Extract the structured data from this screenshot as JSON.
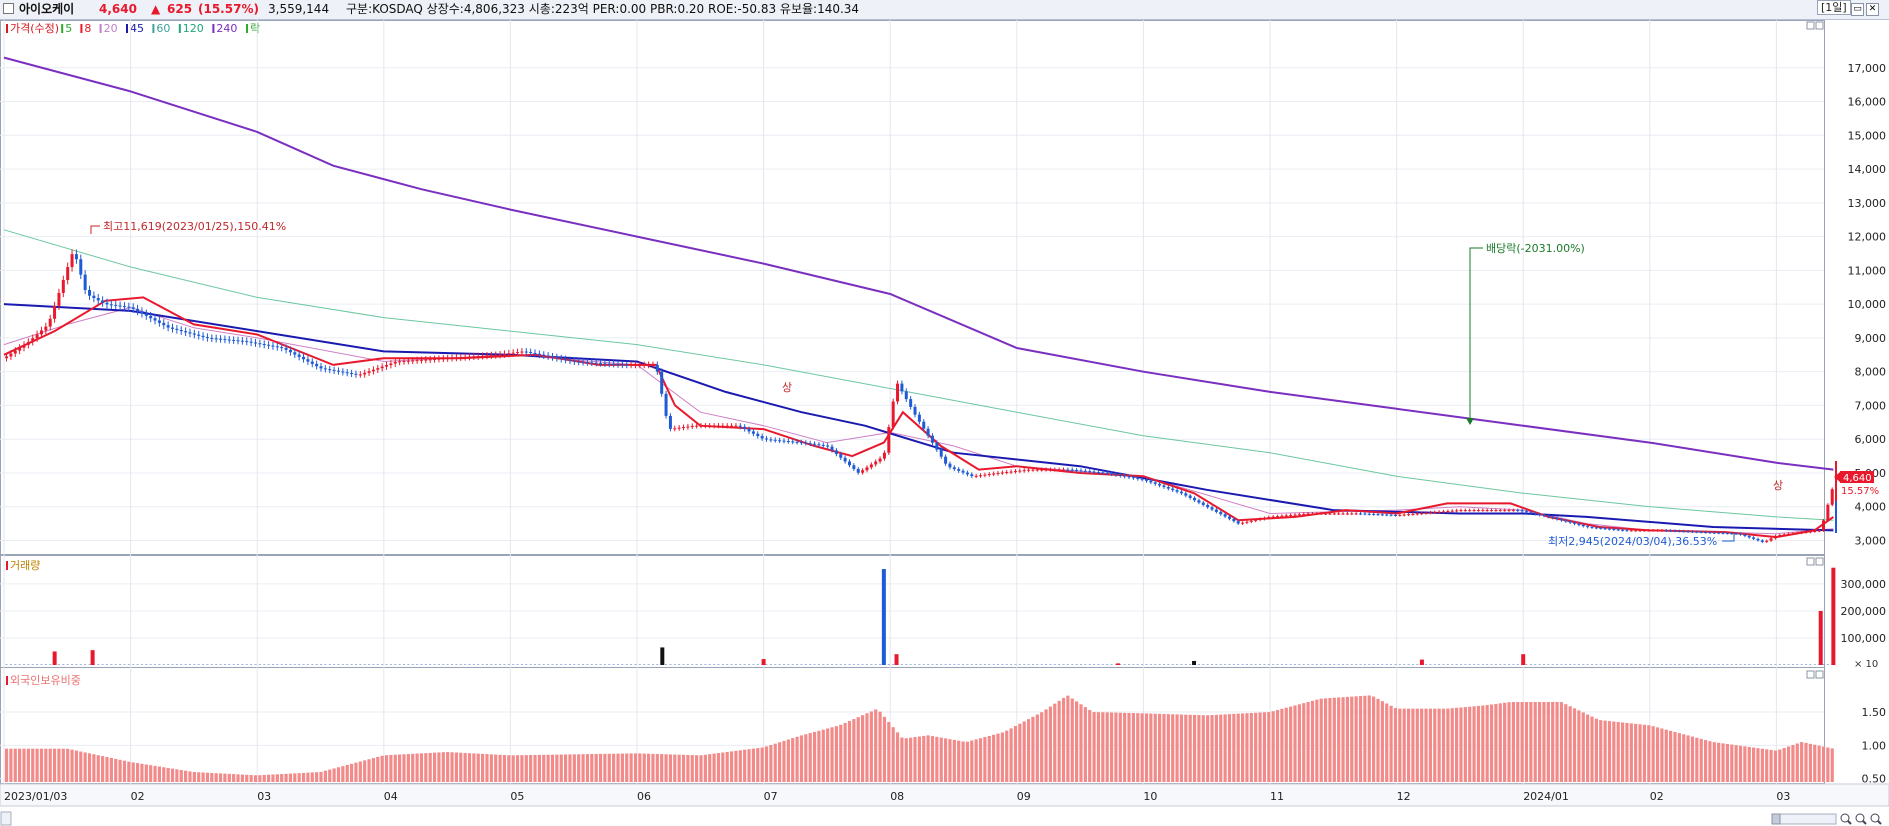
{
  "header": {
    "stock_name": "아이오케이",
    "price": "4,640",
    "change_arrow": "▲",
    "change": "625",
    "change_pct": "(15.57%)",
    "volume": "3,559,144",
    "info": "구분:KOSDAQ 상장수:4,806,323 시총:223억 PER:0.00 PBR:0.20 ROE:-50.83 유보율:140.34",
    "period_label": "[1일]",
    "colors": {
      "up": "#e8192c",
      "down": "#1f5bd6",
      "text": "#111111"
    }
  },
  "price_legend": [
    {
      "label": "가격(수정)",
      "color": "#d71920"
    },
    {
      "label": "5",
      "color": "#2eab2e"
    },
    {
      "label": "8",
      "color": "#e8192c"
    },
    {
      "label": "20",
      "color": "#c080c8"
    },
    {
      "label": "45",
      "color": "#1a1ab0"
    },
    {
      "label": "60",
      "color": "#40a0a0"
    },
    {
      "label": "120",
      "color": "#20a878"
    },
    {
      "label": "240",
      "color": "#7a2fc0"
    },
    {
      "label": "락",
      "color": "#2eab2e"
    }
  ],
  "volume_legend": "거래량",
  "foreign_legend": "외국인보유비중",
  "annotations": {
    "high": "최고11,619(2023/01/25),150.41%",
    "low": "최저2,945(2024/03/04),36.53%",
    "dividend": "배당락(-2031.00%)",
    "limit_up": "상",
    "current_price_tag": "4,640",
    "current_pct_tag": "15.57%",
    "volume_unit": "× 10"
  },
  "icons": [
    "checkbox-icon",
    "minimize-icon",
    "maximize-icon",
    "close-icon",
    "zoom-in-icon",
    "zoom-out-icon",
    "zoom-reset-icon"
  ],
  "chart_data": {
    "type": "candlestick",
    "x_tick_labels": [
      "2023/01/03",
      "02",
      "03",
      "04",
      "05",
      "06",
      "07",
      "08",
      "09",
      "10",
      "11",
      "12",
      "2024/01",
      "02",
      "03"
    ],
    "x_tick_months": [
      0,
      1,
      2,
      3,
      4,
      5,
      6,
      7,
      8,
      9,
      10,
      11,
      12,
      13,
      14
    ],
    "price_axis": {
      "ticks": [
        "3,000",
        "4,000",
        "5,000",
        "6,000",
        "7,000",
        "8,000",
        "9,000",
        "10,000",
        "11,000",
        "12,000",
        "13,000",
        "14,000",
        "15,000",
        "16,000",
        "17,000"
      ],
      "ylim": [
        2600,
        18000
      ]
    },
    "volume_axis": {
      "ticks": [
        "100,000",
        "200,000",
        "300,000"
      ],
      "ylim": [
        0,
        370000
      ]
    },
    "foreign_axis": {
      "ticks": [
        "0.50",
        "1.00",
        "1.50"
      ],
      "ylim": [
        0.45,
        1.95
      ]
    },
    "price_path": [
      [
        0,
        8400
      ],
      [
        0.2,
        8900
      ],
      [
        0.35,
        9400
      ],
      [
        0.55,
        11619
      ],
      [
        0.65,
        10300
      ],
      [
        0.8,
        10000
      ],
      [
        1.0,
        9900
      ],
      [
        1.3,
        9300
      ],
      [
        1.6,
        9000
      ],
      [
        1.9,
        8900
      ],
      [
        2.2,
        8700
      ],
      [
        2.5,
        8100
      ],
      [
        2.8,
        7900
      ],
      [
        3.1,
        8300
      ],
      [
        3.5,
        8400
      ],
      [
        3.9,
        8500
      ],
      [
        4.1,
        8600
      ],
      [
        4.5,
        8300
      ],
      [
        4.9,
        8200
      ],
      [
        5.15,
        8200
      ],
      [
        5.25,
        6300
      ],
      [
        5.45,
        6400
      ],
      [
        5.8,
        6400
      ],
      [
        6.0,
        6000
      ],
      [
        6.3,
        5900
      ],
      [
        6.5,
        5800
      ],
      [
        6.75,
        5000
      ],
      [
        6.95,
        5500
      ],
      [
        7.05,
        7700
      ],
      [
        7.2,
        6700
      ],
      [
        7.45,
        5200
      ],
      [
        7.65,
        4900
      ],
      [
        7.85,
        5000
      ],
      [
        8.1,
        5100
      ],
      [
        8.4,
        5100
      ],
      [
        8.7,
        5000
      ],
      [
        9.0,
        4800
      ],
      [
        9.3,
        4400
      ],
      [
        9.55,
        3900
      ],
      [
        9.75,
        3500
      ],
      [
        10.0,
        3700
      ],
      [
        10.3,
        3800
      ],
      [
        10.7,
        3800
      ],
      [
        11.0,
        3750
      ],
      [
        11.5,
        3900
      ],
      [
        11.95,
        3900
      ],
      [
        12.2,
        3700
      ],
      [
        12.5,
        3400
      ],
      [
        12.8,
        3300
      ],
      [
        13.1,
        3300
      ],
      [
        13.4,
        3250
      ],
      [
        13.7,
        3200
      ],
      [
        13.9,
        2945
      ],
      [
        14.0,
        3150
      ],
      [
        14.1,
        3200
      ],
      [
        14.35,
        3300
      ],
      [
        14.45,
        4640
      ]
    ],
    "ma240": [
      [
        0,
        17300
      ],
      [
        1.0,
        16300
      ],
      [
        2.0,
        15100
      ],
      [
        2.6,
        14100
      ],
      [
        3.3,
        13400
      ],
      [
        4.0,
        12800
      ],
      [
        5.0,
        12000
      ],
      [
        6.0,
        11200
      ],
      [
        7.0,
        10300
      ],
      [
        8.0,
        8700
      ],
      [
        9.0,
        8000
      ],
      [
        10.0,
        7400
      ],
      [
        11.0,
        6900
      ],
      [
        12.0,
        6400
      ],
      [
        13.0,
        5900
      ],
      [
        14.0,
        5300
      ],
      [
        14.45,
        5100
      ]
    ],
    "ma120": [
      [
        0,
        12200
      ],
      [
        1.0,
        11100
      ],
      [
        2.0,
        10200
      ],
      [
        3.0,
        9600
      ],
      [
        4.0,
        9200
      ],
      [
        5.0,
        8800
      ],
      [
        6.0,
        8200
      ],
      [
        7.0,
        7500
      ],
      [
        8.0,
        6800
      ],
      [
        9.0,
        6100
      ],
      [
        10.0,
        5600
      ],
      [
        11.0,
        4900
      ],
      [
        12.0,
        4400
      ],
      [
        13.0,
        4000
      ],
      [
        14.0,
        3700
      ],
      [
        14.45,
        3600
      ]
    ],
    "ma45": [
      [
        0,
        10000
      ],
      [
        1.0,
        9800
      ],
      [
        2.0,
        9200
      ],
      [
        3.0,
        8600
      ],
      [
        4.0,
        8500
      ],
      [
        5.0,
        8300
      ],
      [
        5.7,
        7400
      ],
      [
        6.3,
        6800
      ],
      [
        6.8,
        6400
      ],
      [
        7.5,
        5600
      ],
      [
        8.5,
        5200
      ],
      [
        9.5,
        4500
      ],
      [
        10.5,
        3900
      ],
      [
        11.5,
        3800
      ],
      [
        12.0,
        3800
      ],
      [
        12.5,
        3700
      ],
      [
        13.5,
        3400
      ],
      [
        14.45,
        3300
      ]
    ],
    "ma20": [
      [
        0,
        8800
      ],
      [
        0.5,
        9400
      ],
      [
        1.0,
        9900
      ],
      [
        1.5,
        9300
      ],
      [
        2.0,
        9000
      ],
      [
        3.0,
        8300
      ],
      [
        4.0,
        8500
      ],
      [
        5.0,
        8200
      ],
      [
        5.5,
        6800
      ],
      [
        6.0,
        6400
      ],
      [
        6.5,
        5900
      ],
      [
        7.0,
        6200
      ],
      [
        7.5,
        5800
      ],
      [
        8.0,
        5200
      ],
      [
        9.0,
        4900
      ],
      [
        10.0,
        3800
      ],
      [
        11.0,
        3900
      ],
      [
        11.5,
        4000
      ],
      [
        12.0,
        3900
      ],
      [
        12.5,
        3500
      ],
      [
        13.0,
        3300
      ],
      [
        14.0,
        3200
      ],
      [
        14.45,
        3350
      ]
    ],
    "ma8": [
      [
        0,
        8500
      ],
      [
        0.4,
        9200
      ],
      [
        0.8,
        10100
      ],
      [
        1.1,
        10200
      ],
      [
        1.5,
        9400
      ],
      [
        2.0,
        9100
      ],
      [
        2.6,
        8200
      ],
      [
        3.0,
        8400
      ],
      [
        3.6,
        8400
      ],
      [
        4.2,
        8500
      ],
      [
        4.7,
        8200
      ],
      [
        5.15,
        8200
      ],
      [
        5.3,
        7000
      ],
      [
        5.5,
        6400
      ],
      [
        6.0,
        6300
      ],
      [
        6.4,
        5800
      ],
      [
        6.7,
        5500
      ],
      [
        6.95,
        5900
      ],
      [
        7.1,
        6800
      ],
      [
        7.4,
        5800
      ],
      [
        7.7,
        5100
      ],
      [
        8.0,
        5200
      ],
      [
        8.5,
        5000
      ],
      [
        9.0,
        4900
      ],
      [
        9.4,
        4400
      ],
      [
        9.75,
        3600
      ],
      [
        10.2,
        3700
      ],
      [
        10.6,
        3900
      ],
      [
        11.0,
        3800
      ],
      [
        11.4,
        4100
      ],
      [
        11.9,
        4100
      ],
      [
        12.2,
        3700
      ],
      [
        12.6,
        3400
      ],
      [
        13.0,
        3300
      ],
      [
        13.6,
        3250
      ],
      [
        14.0,
        3100
      ],
      [
        14.3,
        3300
      ],
      [
        14.45,
        3700
      ]
    ],
    "volume_spikes": [
      [
        0.4,
        50000
      ],
      [
        0.7,
        55000
      ],
      [
        5.2,
        65000
      ],
      [
        6.0,
        22000
      ],
      [
        6.95,
        355000
      ],
      [
        7.05,
        40000
      ],
      [
        8.8,
        6000
      ],
      [
        9.4,
        15000
      ],
      [
        11.2,
        20000
      ],
      [
        12.0,
        40000
      ],
      [
        14.35,
        200000
      ],
      [
        14.45,
        360000
      ]
    ],
    "foreign_ratio": [
      [
        0,
        0.95
      ],
      [
        0.5,
        0.95
      ],
      [
        1.0,
        0.75
      ],
      [
        1.5,
        0.6
      ],
      [
        2.0,
        0.55
      ],
      [
        2.5,
        0.6
      ],
      [
        3.0,
        0.85
      ],
      [
        3.5,
        0.9
      ],
      [
        4.0,
        0.85
      ],
      [
        5.0,
        0.88
      ],
      [
        5.5,
        0.85
      ],
      [
        6.0,
        0.97
      ],
      [
        6.3,
        1.15
      ],
      [
        6.6,
        1.3
      ],
      [
        6.9,
        1.55
      ],
      [
        7.1,
        1.1
      ],
      [
        7.3,
        1.15
      ],
      [
        7.6,
        1.05
      ],
      [
        7.9,
        1.2
      ],
      [
        8.2,
        1.5
      ],
      [
        8.4,
        1.75
      ],
      [
        8.6,
        1.5
      ],
      [
        9.0,
        1.48
      ],
      [
        9.5,
        1.45
      ],
      [
        10.0,
        1.5
      ],
      [
        10.4,
        1.7
      ],
      [
        10.8,
        1.75
      ],
      [
        11.0,
        1.55
      ],
      [
        11.4,
        1.55
      ],
      [
        11.7,
        1.6
      ],
      [
        11.9,
        1.65
      ],
      [
        12.3,
        1.65
      ],
      [
        12.6,
        1.38
      ],
      [
        13.0,
        1.3
      ],
      [
        13.5,
        1.05
      ],
      [
        14.0,
        0.92
      ],
      [
        14.2,
        1.05
      ],
      [
        14.45,
        0.95
      ]
    ]
  }
}
